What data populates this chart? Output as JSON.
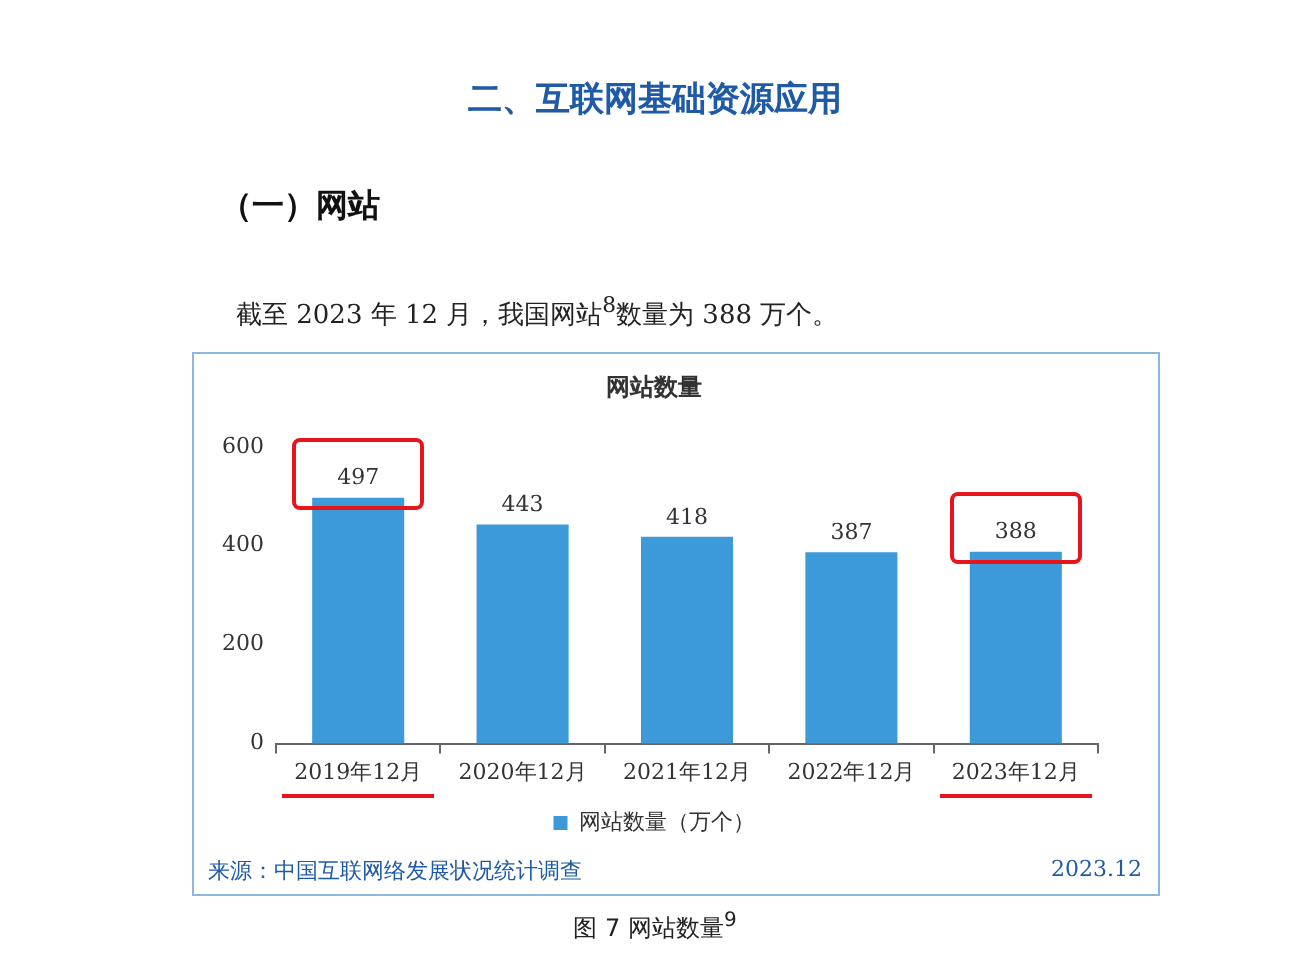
{
  "chart_data": {
    "type": "bar",
    "title": "网站数量",
    "categories": [
      "2019年12月",
      "2020年12月",
      "2021年12月",
      "2022年12月",
      "2023年12月"
    ],
    "series": [
      {
        "name": "网站数量（万个）",
        "color": "#3c9ad8",
        "values": [
          497,
          443,
          418,
          387,
          388
        ]
      }
    ],
    "ylim": [
      0,
      600
    ],
    "yticks": [
      0,
      200,
      400,
      600
    ],
    "grid": false,
    "legend": "bottom",
    "data_labels": true,
    "annotations": [
      "二、互联网基础资源应用",
      "（一）网站",
      "截至 2023 年 12 月，我国网站$^{8}$数量为 388 万个。",
      "来源：中国互联网络发展状况统计调查",
      "2023.12",
      "图 7 网站数量$^{9}$"
    ]
  }
}
